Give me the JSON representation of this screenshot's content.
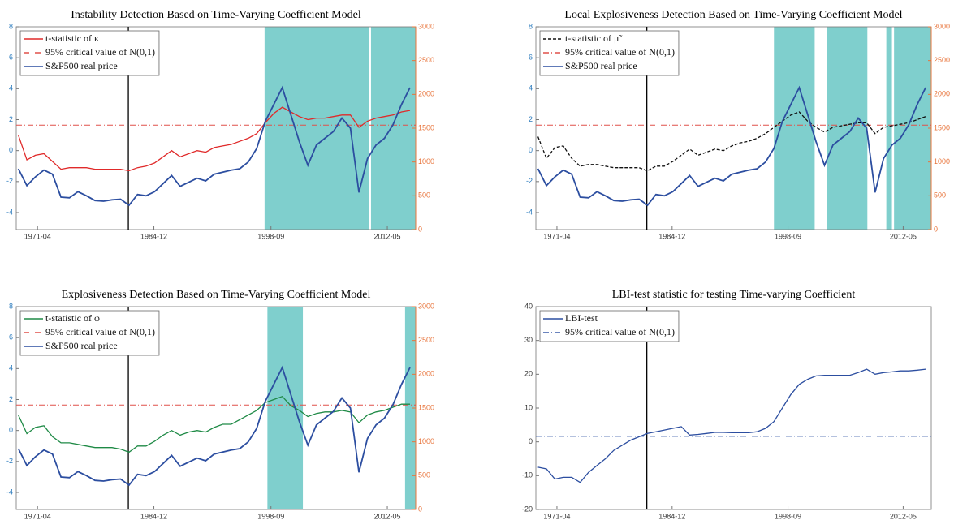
{
  "chart_data": [
    {
      "type": "line",
      "title": "Instability Detection Based on Time-Varying Coefficient Model",
      "x": [
        "1969-01",
        "1970-01",
        "1971-01",
        "1972-01",
        "1973-01",
        "1974-01",
        "1975-01",
        "1976-01",
        "1977-01",
        "1978-01",
        "1979-01",
        "1980-01",
        "1981-01",
        "1982-01",
        "1983-01",
        "1984-01",
        "1985-01",
        "1986-01",
        "1987-01",
        "1988-01",
        "1989-01",
        "1990-01",
        "1991-01",
        "1992-01",
        "1993-01",
        "1994-01",
        "1995-01",
        "1996-01",
        "1997-01",
        "1998-01",
        "1999-01",
        "2000-01",
        "2001-01",
        "2002-01",
        "2003-01",
        "2004-01",
        "2005-01",
        "2006-01",
        "2007-01",
        "2008-01",
        "2009-01",
        "2010-01",
        "2011-01",
        "2012-01",
        "2013-01",
        "2014-01",
        "2015-01"
      ],
      "series": [
        {
          "name": "t-statistic of κ",
          "color": "#e02a2a",
          "style": "solid",
          "values": [
            1.0,
            -0.6,
            -0.3,
            -0.2,
            -0.7,
            -1.2,
            -1.1,
            -1.1,
            -1.1,
            -1.2,
            -1.2,
            -1.2,
            -1.2,
            -1.3,
            -1.1,
            -1.0,
            -0.8,
            -0.4,
            0.0,
            -0.4,
            -0.2,
            0.0,
            -0.1,
            0.2,
            0.3,
            0.4,
            0.6,
            0.8,
            1.1,
            1.8,
            2.4,
            2.8,
            2.5,
            2.2,
            2.0,
            2.1,
            2.1,
            2.2,
            2.3,
            2.3,
            1.5,
            1.9,
            2.1,
            2.2,
            2.3,
            2.5,
            2.6
          ]
        },
        {
          "name": "S&P500 real price",
          "color": "#2c4ea0",
          "style": "solid",
          "axis": "y2",
          "values": [
            900,
            650,
            780,
            880,
            820,
            480,
            470,
            560,
            500,
            430,
            420,
            440,
            450,
            360,
            520,
            500,
            560,
            680,
            800,
            640,
            700,
            760,
            720,
            820,
            850,
            880,
            900,
            1000,
            1200,
            1600,
            1850,
            2100,
            1700,
            1300,
            950,
            1250,
            1350,
            1450,
            1650,
            1500,
            550,
            1050,
            1250,
            1350,
            1550,
            1850,
            2100
          ]
        }
      ],
      "hlines": [
        {
          "name": "95% critical value of N(0,1)",
          "value": 1.645,
          "color": "#e0504a",
          "style": "dashdot"
        }
      ],
      "vline": "1981-12",
      "shaded": [
        [
          "1997-12",
          "2010-03"
        ],
        [
          "2010-06",
          "2015-09"
        ]
      ],
      "shade_color": "#7fcfcd",
      "xlim": [
        "1968-10",
        "2015-09"
      ],
      "xticks": [
        "1971-04",
        "1984-12",
        "1998-09",
        "2012-05"
      ],
      "ylim": [
        -5.1,
        8
      ],
      "yticks": [
        -4,
        -2,
        0,
        2,
        4,
        6,
        8
      ],
      "y_axis_color": "#2b7bbd",
      "y2lim": [
        0,
        3000
      ],
      "y2ticks": [
        0,
        500,
        1000,
        1500,
        2000,
        2500,
        3000
      ],
      "y2_axis_color": "#e8743b"
    },
    {
      "type": "line",
      "title": "Local Explosiveness Detection Based on Time-Varying Coefficient Model",
      "x": [
        "1969-01",
        "1970-01",
        "1971-01",
        "1972-01",
        "1973-01",
        "1974-01",
        "1975-01",
        "1976-01",
        "1977-01",
        "1978-01",
        "1979-01",
        "1980-01",
        "1981-01",
        "1982-01",
        "1983-01",
        "1984-01",
        "1985-01",
        "1986-01",
        "1987-01",
        "1988-01",
        "1989-01",
        "1990-01",
        "1991-01",
        "1992-01",
        "1993-01",
        "1994-01",
        "1995-01",
        "1996-01",
        "1997-01",
        "1998-01",
        "1999-01",
        "2000-01",
        "2001-01",
        "2002-01",
        "2003-01",
        "2004-01",
        "2005-01",
        "2006-01",
        "2007-01",
        "2008-01",
        "2009-01",
        "2010-01",
        "2011-01",
        "2012-01",
        "2013-01",
        "2014-01",
        "2015-01"
      ],
      "series": [
        {
          "name": "t-statistic of μ̃",
          "color": "#111111",
          "style": "dashed",
          "values": [
            0.9,
            -0.5,
            0.2,
            0.3,
            -0.5,
            -1.0,
            -0.9,
            -0.9,
            -1.0,
            -1.1,
            -1.1,
            -1.1,
            -1.1,
            -1.3,
            -1.0,
            -1.0,
            -0.7,
            -0.3,
            0.1,
            -0.3,
            -0.1,
            0.1,
            0.0,
            0.3,
            0.5,
            0.6,
            0.8,
            1.1,
            1.5,
            1.9,
            2.3,
            2.5,
            1.9,
            1.5,
            1.2,
            1.5,
            1.6,
            1.7,
            1.8,
            1.8,
            1.1,
            1.5,
            1.6,
            1.7,
            1.8,
            2.0,
            2.2
          ]
        },
        {
          "name": "S&P500 real price",
          "color": "#2c4ea0",
          "style": "solid",
          "axis": "y2",
          "values": [
            900,
            650,
            780,
            880,
            820,
            480,
            470,
            560,
            500,
            430,
            420,
            440,
            450,
            360,
            520,
            500,
            560,
            680,
            800,
            640,
            700,
            760,
            720,
            820,
            850,
            880,
            900,
            1000,
            1200,
            1600,
            1850,
            2100,
            1700,
            1300,
            950,
            1250,
            1350,
            1450,
            1650,
            1500,
            550,
            1050,
            1250,
            1350,
            1550,
            1850,
            2100
          ]
        }
      ],
      "hlines": [
        {
          "name": "95% critical value of N(0,1)",
          "value": 1.645,
          "color": "#e0504a",
          "style": "dashdot"
        }
      ],
      "vline": "1981-12",
      "shaded": [
        [
          "1997-01",
          "2001-11"
        ],
        [
          "2003-04",
          "2008-02"
        ],
        [
          "2010-05",
          "2011-01"
        ],
        [
          "2011-04",
          "2015-09"
        ]
      ],
      "shade_color": "#7fcfcd",
      "xlim": [
        "1968-10",
        "2015-09"
      ],
      "xticks": [
        "1971-04",
        "1984-12",
        "1998-09",
        "2012-05"
      ],
      "ylim": [
        -5.1,
        8
      ],
      "yticks": [
        -4,
        -2,
        0,
        2,
        4,
        6,
        8
      ],
      "y_axis_color": "#2b7bbd",
      "y2lim": [
        0,
        3000
      ],
      "y2ticks": [
        0,
        500,
        1000,
        1500,
        2000,
        2500,
        3000
      ],
      "y2_axis_color": "#e8743b"
    },
    {
      "type": "line",
      "title": "Explosiveness Detection Based on Time-Varying Coefficient Model",
      "x": [
        "1969-01",
        "1970-01",
        "1971-01",
        "1972-01",
        "1973-01",
        "1974-01",
        "1975-01",
        "1976-01",
        "1977-01",
        "1978-01",
        "1979-01",
        "1980-01",
        "1981-01",
        "1982-01",
        "1983-01",
        "1984-01",
        "1985-01",
        "1986-01",
        "1987-01",
        "1988-01",
        "1989-01",
        "1990-01",
        "1991-01",
        "1992-01",
        "1993-01",
        "1994-01",
        "1995-01",
        "1996-01",
        "1997-01",
        "1998-01",
        "1999-01",
        "2000-01",
        "2001-01",
        "2002-01",
        "2003-01",
        "2004-01",
        "2005-01",
        "2006-01",
        "2007-01",
        "2008-01",
        "2009-01",
        "2010-01",
        "2011-01",
        "2012-01",
        "2013-01",
        "2014-01",
        "2015-01"
      ],
      "series": [
        {
          "name": "t-statistic of φ",
          "color": "#1f8a46",
          "style": "solid",
          "values": [
            1.0,
            -0.2,
            0.2,
            0.3,
            -0.4,
            -0.8,
            -0.8,
            -0.9,
            -1.0,
            -1.1,
            -1.1,
            -1.1,
            -1.2,
            -1.4,
            -1.0,
            -1.0,
            -0.7,
            -0.3,
            0.0,
            -0.3,
            -0.1,
            0.0,
            -0.1,
            0.2,
            0.4,
            0.4,
            0.7,
            1.0,
            1.3,
            1.8,
            2.0,
            2.2,
            1.6,
            1.3,
            0.9,
            1.1,
            1.2,
            1.2,
            1.3,
            1.2,
            0.5,
            1.0,
            1.2,
            1.3,
            1.5,
            1.7,
            1.7
          ]
        },
        {
          "name": "S&P500 real price",
          "color": "#2c4ea0",
          "style": "solid",
          "axis": "y2",
          "values": [
            900,
            650,
            780,
            880,
            820,
            480,
            470,
            560,
            500,
            430,
            420,
            440,
            450,
            360,
            520,
            500,
            560,
            680,
            800,
            640,
            700,
            760,
            720,
            820,
            850,
            880,
            900,
            1000,
            1200,
            1600,
            1850,
            2100,
            1700,
            1300,
            950,
            1250,
            1350,
            1450,
            1650,
            1500,
            550,
            1050,
            1250,
            1350,
            1550,
            1850,
            2100
          ]
        }
      ],
      "hlines": [
        {
          "name": "95% critical value of N(0,1)",
          "value": 1.645,
          "color": "#e0504a",
          "style": "dashdot"
        }
      ],
      "vline": "1981-12",
      "shaded": [
        [
          "1998-04",
          "2002-06"
        ],
        [
          "2014-06",
          "2015-09"
        ]
      ],
      "shade_color": "#7fcfcd",
      "xlim": [
        "1968-10",
        "2015-09"
      ],
      "xticks": [
        "1971-04",
        "1984-12",
        "1998-09",
        "2012-05"
      ],
      "ylim": [
        -5.1,
        8
      ],
      "yticks": [
        -4,
        -2,
        0,
        2,
        4,
        6,
        8
      ],
      "y_axis_color": "#2b7bbd",
      "y2lim": [
        0,
        3000
      ],
      "y2ticks": [
        0,
        500,
        1000,
        1500,
        2000,
        2500,
        3000
      ],
      "y2_axis_color": "#e8743b"
    },
    {
      "type": "line",
      "title": "LBI-test statistic for testing Time-varying Coefficient",
      "x": [
        "1969-01",
        "1970-01",
        "1971-01",
        "1972-01",
        "1973-01",
        "1974-01",
        "1975-01",
        "1976-01",
        "1977-01",
        "1978-01",
        "1979-01",
        "1980-01",
        "1981-01",
        "1982-01",
        "1983-01",
        "1984-01",
        "1985-01",
        "1986-01",
        "1987-01",
        "1988-01",
        "1989-01",
        "1990-01",
        "1991-01",
        "1992-01",
        "1993-01",
        "1994-01",
        "1995-01",
        "1996-01",
        "1997-01",
        "1998-01",
        "1999-01",
        "2000-01",
        "2001-01",
        "2002-01",
        "2003-01",
        "2004-01",
        "2005-01",
        "2006-01",
        "2007-01",
        "2008-01",
        "2009-01",
        "2010-01",
        "2011-01",
        "2012-01",
        "2013-01",
        "2014-01",
        "2015-01"
      ],
      "series": [
        {
          "name": "LBI-test",
          "color": "#2c4ea0",
          "style": "solid",
          "values": [
            -7.5,
            -8,
            -11,
            -10.5,
            -10.5,
            -12,
            -9,
            -7,
            -5,
            -2.5,
            -1,
            0.5,
            1.5,
            2.5,
            3,
            3.5,
            4,
            4.5,
            2,
            2.2,
            2.5,
            2.8,
            2.8,
            2.7,
            2.7,
            2.7,
            3,
            4,
            6,
            10,
            14,
            17,
            18.5,
            19.5,
            19.7,
            19.7,
            19.7,
            19.7,
            20.5,
            21.5,
            20,
            20.5,
            20.7,
            21,
            21,
            21.2,
            21.5
          ]
        }
      ],
      "hlines": [
        {
          "name": "95% critical value of N(0,1)",
          "value": 1.645,
          "color": "#3a5ba8",
          "style": "dashdot"
        }
      ],
      "vline": "1981-12",
      "xlim": [
        "1968-10",
        "2015-09"
      ],
      "xticks": [
        "1971-04",
        "1984-12",
        "1998-09",
        "2012-05"
      ],
      "ylim": [
        -20,
        40
      ],
      "yticks": [
        -20,
        -10,
        0,
        10,
        20,
        30,
        40
      ],
      "y_axis_color": "#333333"
    }
  ]
}
